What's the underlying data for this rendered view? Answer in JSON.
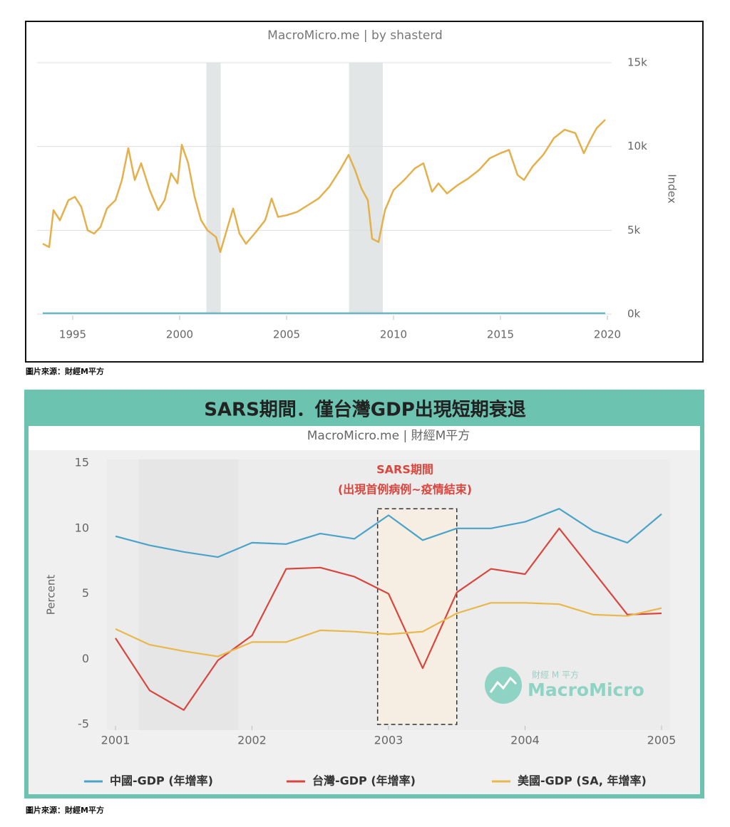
{
  "chart_data": [
    {
      "type": "line",
      "title": "MacroMicro.me | by shasterd",
      "ylabel": "Index",
      "xlim": [
        1993.5,
        2020
      ],
      "xticks": [
        1995,
        2000,
        2005,
        2010,
        2015,
        2020
      ],
      "ylim": [
        0,
        15000
      ],
      "yticks": [
        {
          "value": 0,
          "label": "0k"
        },
        {
          "value": 5000,
          "label": "5k"
        },
        {
          "value": 10000,
          "label": "10k"
        },
        {
          "value": 15000,
          "label": "15k"
        }
      ],
      "grid": true,
      "bands": [
        [
          2001.25,
          2001.92
        ],
        [
          2007.92,
          2009.5
        ]
      ],
      "series": [
        {
          "color": "#e3b04b",
          "x": [
            1993.6,
            1993.9,
            1994.1,
            1994.4,
            1994.8,
            1995.1,
            1995.4,
            1995.7,
            1996.0,
            1996.3,
            1996.6,
            1997.0,
            1997.3,
            1997.6,
            1997.9,
            1998.2,
            1998.6,
            1999.0,
            1999.3,
            1999.6,
            1999.9,
            2000.1,
            2000.4,
            2000.7,
            2001.0,
            2001.3,
            2001.7,
            2001.9,
            2002.2,
            2002.5,
            2002.8,
            2003.1,
            2003.5,
            2004.0,
            2004.3,
            2004.6,
            2005.0,
            2005.5,
            2006.0,
            2006.5,
            2007.0,
            2007.5,
            2007.9,
            2008.2,
            2008.5,
            2008.8,
            2009.0,
            2009.3,
            2009.6,
            2010.0,
            2010.5,
            2011.0,
            2011.4,
            2011.8,
            2012.1,
            2012.5,
            2013.0,
            2013.5,
            2014.0,
            2014.5,
            2015.0,
            2015.4,
            2015.8,
            2016.1,
            2016.5,
            2017.0,
            2017.5,
            2018.0,
            2018.5,
            2018.9,
            2019.2,
            2019.5,
            2019.9
          ],
          "values": [
            4200,
            4000,
            6200,
            5600,
            6800,
            7000,
            6400,
            5000,
            4800,
            5200,
            6300,
            6800,
            8000,
            9900,
            8000,
            9000,
            7400,
            6200,
            6800,
            8400,
            7800,
            10100,
            9000,
            7000,
            5600,
            5000,
            4600,
            3700,
            5000,
            6300,
            4800,
            4200,
            4800,
            5600,
            6900,
            5800,
            5900,
            6100,
            6500,
            6900,
            7600,
            8600,
            9500,
            8600,
            7500,
            6800,
            4500,
            4300,
            6200,
            7400,
            8000,
            8700,
            9000,
            7300,
            7800,
            7200,
            7700,
            8100,
            8600,
            9300,
            9600,
            9800,
            8300,
            8000,
            8800,
            9500,
            10500,
            11000,
            10800,
            9600,
            10400,
            11100,
            11600
          ]
        },
        {
          "color": "#6fb7c4",
          "x": [
            1993.6,
            2019.9
          ],
          "values": [
            50,
            50
          ]
        }
      ]
    },
    {
      "type": "line",
      "title": "SARS期間．僅台灣GDP出現短期衰退",
      "subtitle": "MacroMicro.me | 財經M平方",
      "ylabel": "Percent",
      "annotations": [
        "SARS期間",
        "(出現首例病例~疫情結束)"
      ],
      "watermark": [
        "財經 M 平方",
        "MacroMicro"
      ],
      "xlim": [
        2001,
        2005
      ],
      "xticks": [
        2001,
        2002,
        2003,
        2004,
        2005
      ],
      "ylim": [
        -5,
        15
      ],
      "yticks": [
        -5,
        0,
        5,
        10,
        15
      ],
      "grid": false,
      "bands": [
        [
          2001.17,
          2001.9
        ]
      ],
      "highlight": {
        "x": [
          2002.92,
          2003.5
        ],
        "y": [
          -5,
          11.5
        ]
      },
      "x": [
        2001,
        2001.25,
        2001.5,
        2001.75,
        2002,
        2002.25,
        2002.5,
        2002.75,
        2003,
        2003.25,
        2003.5,
        2003.75,
        2004,
        2004.25,
        2004.5,
        2004.75,
        2005
      ],
      "series": [
        {
          "name": "中國-GDP (年增率)",
          "color": "#4aa3c8",
          "values": [
            9.4,
            8.7,
            8.2,
            7.8,
            8.9,
            8.8,
            9.6,
            9.2,
            11.0,
            9.1,
            10.0,
            10.0,
            10.5,
            11.5,
            9.8,
            8.9,
            11.1
          ]
        },
        {
          "name": "台灣-GDP (年增率)",
          "color": "#d9463e",
          "values": [
            1.6,
            -2.4,
            -3.9,
            -0.1,
            1.8,
            6.9,
            7.0,
            6.3,
            5.0,
            -0.7,
            5.1,
            6.9,
            6.5,
            10.0,
            6.7,
            3.4,
            3.5
          ]
        },
        {
          "name": "美國-GDP (SA, 年增率)",
          "color": "#e8b84a",
          "values": [
            2.3,
            1.1,
            0.6,
            0.2,
            1.3,
            1.3,
            2.2,
            2.1,
            1.9,
            2.1,
            3.5,
            4.3,
            4.3,
            4.2,
            3.4,
            3.3,
            3.9
          ]
        }
      ]
    }
  ],
  "captions": [
    "圖片來源：財經M平方",
    "圖片來源：財經M平方"
  ]
}
